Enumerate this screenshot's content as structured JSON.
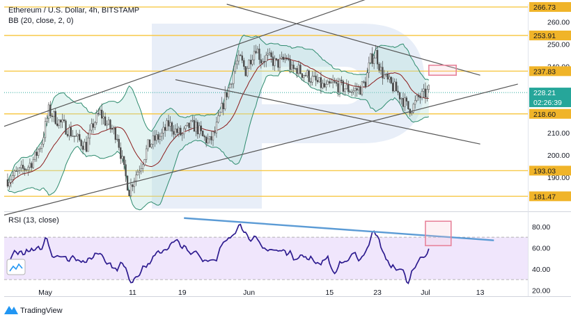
{
  "header": {
    "title": "Ethereum / U.S. Dollar, 4h, BITSTAMP",
    "bb_label": "BB (20, close, 2, 0)",
    "rsi_label": "RSI (13, close)"
  },
  "branding": {
    "name": "TradingView"
  },
  "colors": {
    "level_line": "#f7c948",
    "level_badge": "#f0b429",
    "price_badge": "#26a69a",
    "bb_band": "#2e8b6e",
    "bb_fill": "#b2dfdb",
    "bb_basis": "#8b1a1a",
    "candle": "#4a4a4a",
    "trend_line": "#555555",
    "rsi_line": "#2d1b8f",
    "rsi_fill": "#e6d5fa",
    "rsi_trend": "#5b9bd5",
    "target_box": "#e7849b"
  },
  "chart_data": [
    {
      "type": "candlestick",
      "title": "Ethereum / U.S. Dollar, 4h, BITSTAMP",
      "indicator": "BB (20, close, 2, 0)",
      "ylim": [
        175,
        268
      ],
      "y_ticks": [
        190.0,
        200.0,
        210.0,
        240.0,
        250.0,
        260.0
      ],
      "x_ticks": [
        "May",
        "11",
        "19",
        "Jun",
        "15",
        "23",
        "Jul",
        "13"
      ],
      "x_tick_index": [
        14,
        65,
        94,
        133,
        180,
        208,
        236,
        268
      ],
      "x_index_range": [
        -10,
        295
      ],
      "levels": [
        {
          "value": 266.73,
          "label": "266.73"
        },
        {
          "value": 253.91,
          "label": "253.91"
        },
        {
          "value": 237.83,
          "label": "237.83"
        },
        {
          "value": 218.6,
          "label": "218.60"
        },
        {
          "value": 193.03,
          "label": "193.03"
        },
        {
          "value": 181.47,
          "label": "181.47"
        }
      ],
      "last_price": {
        "value": 228.21,
        "label": "228.21",
        "countdown": "02:26:39"
      },
      "close_anchors": [
        [
          -8,
          189
        ],
        [
          0,
          193
        ],
        [
          4,
          195
        ],
        [
          8,
          199
        ],
        [
          12,
          206
        ],
        [
          16,
          220
        ],
        [
          22,
          215
        ],
        [
          28,
          211
        ],
        [
          33,
          207
        ],
        [
          38,
          204
        ],
        [
          42,
          214
        ],
        [
          46,
          219
        ],
        [
          50,
          214
        ],
        [
          56,
          209
        ],
        [
          60,
          193
        ],
        [
          63,
          184
        ],
        [
          66,
          190
        ],
        [
          70,
          196
        ],
        [
          74,
          204
        ],
        [
          78,
          207
        ],
        [
          82,
          209
        ],
        [
          86,
          214
        ],
        [
          90,
          211
        ],
        [
          94,
          209
        ],
        [
          98,
          213
        ],
        [
          102,
          213
        ],
        [
          106,
          208
        ],
        [
          110,
          206
        ],
        [
          113,
          210
        ],
        [
          116,
          218
        ],
        [
          119,
          226
        ],
        [
          122,
          232
        ],
        [
          125,
          241
        ],
        [
          128,
          243
        ],
        [
          131,
          238
        ],
        [
          134,
          244
        ],
        [
          137,
          249
        ],
        [
          140,
          243
        ],
        [
          143,
          244
        ],
        [
          146,
          243
        ],
        [
          149,
          241
        ],
        [
          152,
          242
        ],
        [
          155,
          244
        ],
        [
          158,
          238
        ],
        [
          161,
          239
        ],
        [
          164,
          237
        ],
        [
          167,
          236
        ],
        [
          170,
          234
        ],
        [
          174,
          232
        ],
        [
          178,
          230
        ],
        [
          182,
          232
        ],
        [
          186,
          231
        ],
        [
          190,
          230
        ],
        [
          194,
          229
        ],
        [
          198,
          230
        ],
        [
          201,
          233
        ],
        [
          204,
          243
        ],
        [
          207,
          246
        ],
        [
          210,
          238
        ],
        [
          214,
          233
        ],
        [
          218,
          230
        ],
        [
          222,
          226
        ],
        [
          226,
          221
        ],
        [
          229,
          222
        ],
        [
          232,
          226
        ],
        [
          235,
          227
        ],
        [
          238,
          229
        ]
      ],
      "trend_lines": [
        {
          "from": [
            -10,
            213
          ],
          "to": [
            208,
            272
          ]
        },
        {
          "from": [
            -10,
            173
          ],
          "to": [
            290,
            232
          ]
        },
        {
          "from": [
            120,
            268
          ],
          "to": [
            268,
            236
          ]
        },
        {
          "from": [
            90,
            234
          ],
          "to": [
            268,
            205
          ]
        }
      ],
      "target_box": {
        "x": [
          238,
          254
        ],
        "y": [
          236,
          240.5
        ]
      }
    },
    {
      "type": "line",
      "title": "RSI (13, close)",
      "ylim": [
        15,
        93
      ],
      "y_ticks": [
        20.0,
        40.0,
        60.0,
        80.0
      ],
      "x_index_range": [
        -10,
        295
      ],
      "band": [
        30,
        70
      ],
      "anchors": [
        [
          -8,
          42
        ],
        [
          -4,
          58
        ],
        [
          0,
          55
        ],
        [
          4,
          57
        ],
        [
          8,
          56
        ],
        [
          12,
          60
        ],
        [
          14,
          72
        ],
        [
          18,
          52
        ],
        [
          22,
          55
        ],
        [
          26,
          48
        ],
        [
          30,
          52
        ],
        [
          34,
          50
        ],
        [
          38,
          45
        ],
        [
          42,
          54
        ],
        [
          46,
          56
        ],
        [
          50,
          47
        ],
        [
          54,
          40
        ],
        [
          58,
          45
        ],
        [
          62,
          35
        ],
        [
          64,
          28
        ],
        [
          66,
          34
        ],
        [
          70,
          40
        ],
        [
          74,
          45
        ],
        [
          78,
          52
        ],
        [
          82,
          58
        ],
        [
          86,
          62
        ],
        [
          90,
          65
        ],
        [
          94,
          62
        ],
        [
          98,
          52
        ],
        [
          102,
          58
        ],
        [
          106,
          48
        ],
        [
          110,
          50
        ],
        [
          113,
          50
        ],
        [
          116,
          60
        ],
        [
          120,
          66
        ],
        [
          124,
          72
        ],
        [
          127,
          88
        ],
        [
          130,
          74
        ],
        [
          134,
          70
        ],
        [
          137,
          66
        ],
        [
          140,
          58
        ],
        [
          143,
          60
        ],
        [
          146,
          58
        ],
        [
          150,
          56
        ],
        [
          154,
          58
        ],
        [
          158,
          52
        ],
        [
          162,
          53
        ],
        [
          166,
          50
        ],
        [
          170,
          48
        ],
        [
          174,
          46
        ],
        [
          178,
          52
        ],
        [
          182,
          35
        ],
        [
          186,
          46
        ],
        [
          190,
          48
        ],
        [
          194,
          52
        ],
        [
          198,
          50
        ],
        [
          202,
          62
        ],
        [
          205,
          75
        ],
        [
          208,
          74
        ],
        [
          210,
          60
        ],
        [
          212,
          48
        ],
        [
          216,
          42
        ],
        [
          220,
          40
        ],
        [
          224,
          34
        ],
        [
          226,
          24
        ],
        [
          228,
          40
        ],
        [
          232,
          48
        ],
        [
          235,
          55
        ],
        [
          238,
          58
        ]
      ],
      "trend_line": {
        "from": [
          95,
          88
        ],
        "to": [
          276,
          67
        ]
      },
      "target_box": {
        "x": [
          236,
          251
        ],
        "y": [
          62,
          85
        ]
      }
    }
  ]
}
